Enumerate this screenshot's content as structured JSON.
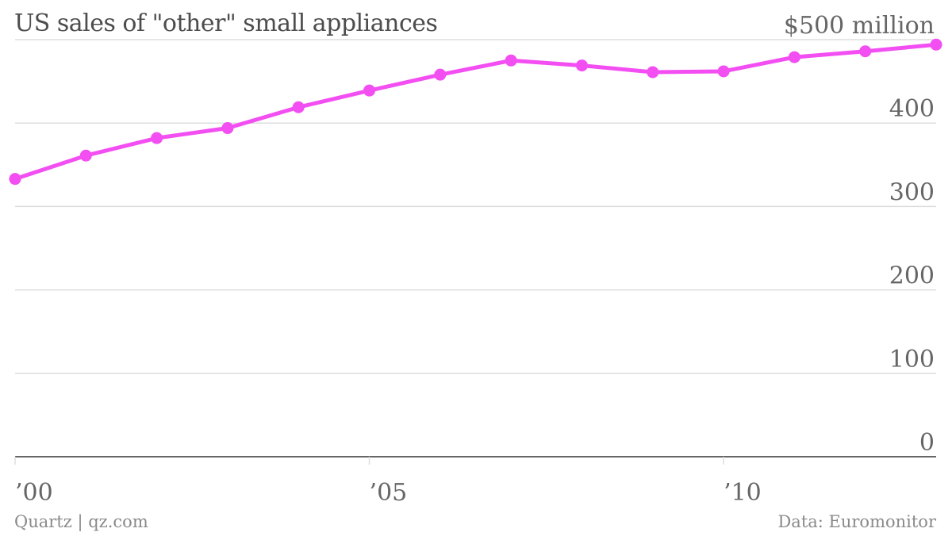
{
  "title": "US sales of \"other\" small appliances",
  "footer": {
    "credit": "Quartz | qz.com",
    "source": "Data: Euromonitor"
  },
  "colors": {
    "line": "#f24ef2",
    "grid": "#dddddd",
    "axis": "#333333",
    "text": "#666666"
  },
  "chart_data": {
    "type": "line",
    "title": "US sales of \"other\" small appliances",
    "x": [
      2000,
      2001,
      2002,
      2003,
      2004,
      2005,
      2006,
      2007,
      2008,
      2009,
      2010,
      2011,
      2012,
      2013
    ],
    "series": [
      {
        "values": [
          333,
          361,
          382,
          394,
          419,
          439,
          458,
          475,
          469,
          461,
          462,
          479,
          486,
          494
        ]
      }
    ],
    "y_ticks": [
      {
        "value": 0,
        "label": "0"
      },
      {
        "value": 100,
        "label": "100"
      },
      {
        "value": 200,
        "label": "200"
      },
      {
        "value": 300,
        "label": "300"
      },
      {
        "value": 400,
        "label": "400"
      },
      {
        "value": 500,
        "label": "$500 million"
      }
    ],
    "x_ticks": [
      {
        "value": 2000,
        "label": "’00"
      },
      {
        "value": 2005,
        "label": "’05"
      },
      {
        "value": 2010,
        "label": "’10"
      }
    ],
    "xlim": [
      2000,
      2013
    ],
    "ylim": [
      0,
      500
    ],
    "grid": true
  }
}
